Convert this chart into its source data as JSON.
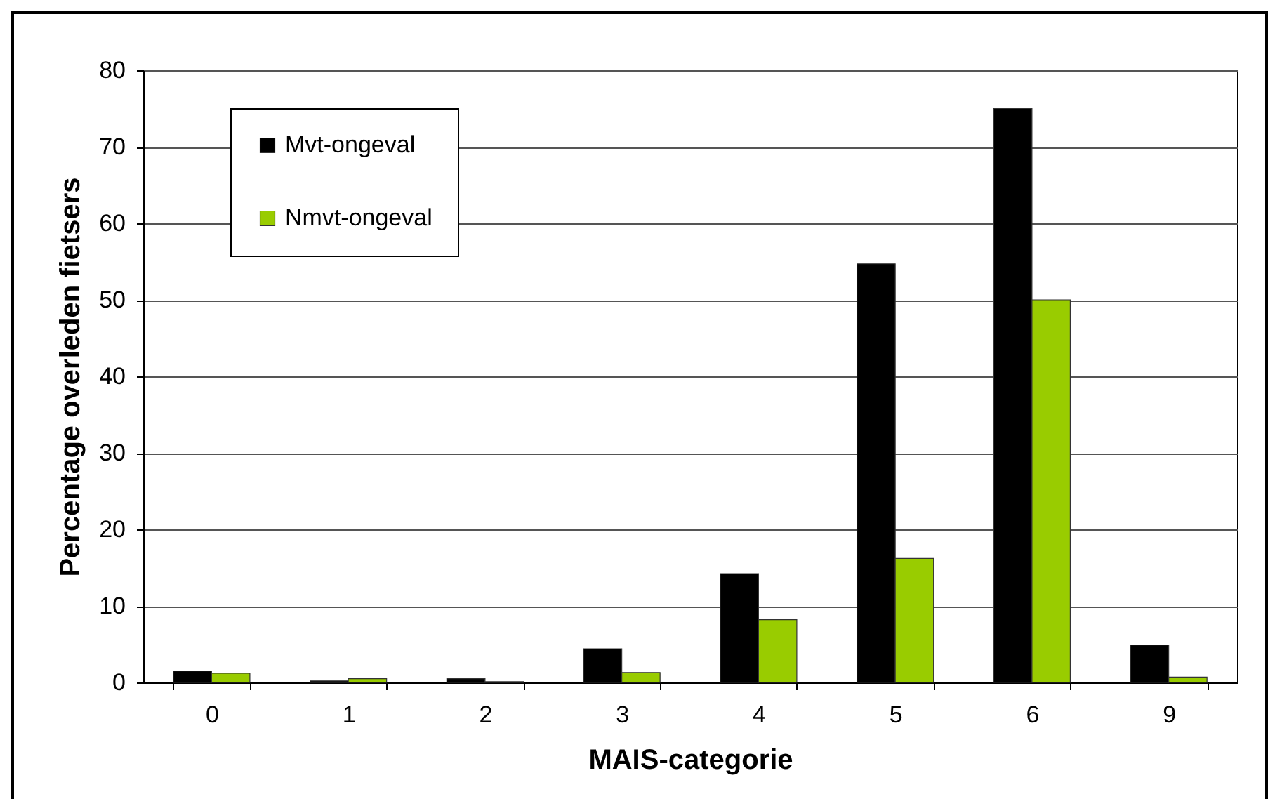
{
  "chart_data": {
    "type": "bar",
    "xlabel": "MAIS-categorie",
    "ylabel": "Percentage overleden fietsers",
    "categories": [
      "0",
      "1",
      "2",
      "3",
      "4",
      "5",
      "6",
      "9"
    ],
    "series": [
      {
        "name": "Mvt-ongeval",
        "color": "#000000",
        "values": [
          1.5,
          0.2,
          0.5,
          4.4,
          14.2,
          54.7,
          75,
          4.9
        ]
      },
      {
        "name": "Nmvt-ongeval",
        "color": "#99cc00",
        "values": [
          1.2,
          0.5,
          0.1,
          1.3,
          8.2,
          16.2,
          50,
          0.7
        ]
      }
    ],
    "ylim": [
      0,
      80
    ],
    "yticks": [
      0,
      10,
      20,
      30,
      40,
      50,
      60,
      70,
      80
    ],
    "grid": "y",
    "legend": "top left"
  }
}
